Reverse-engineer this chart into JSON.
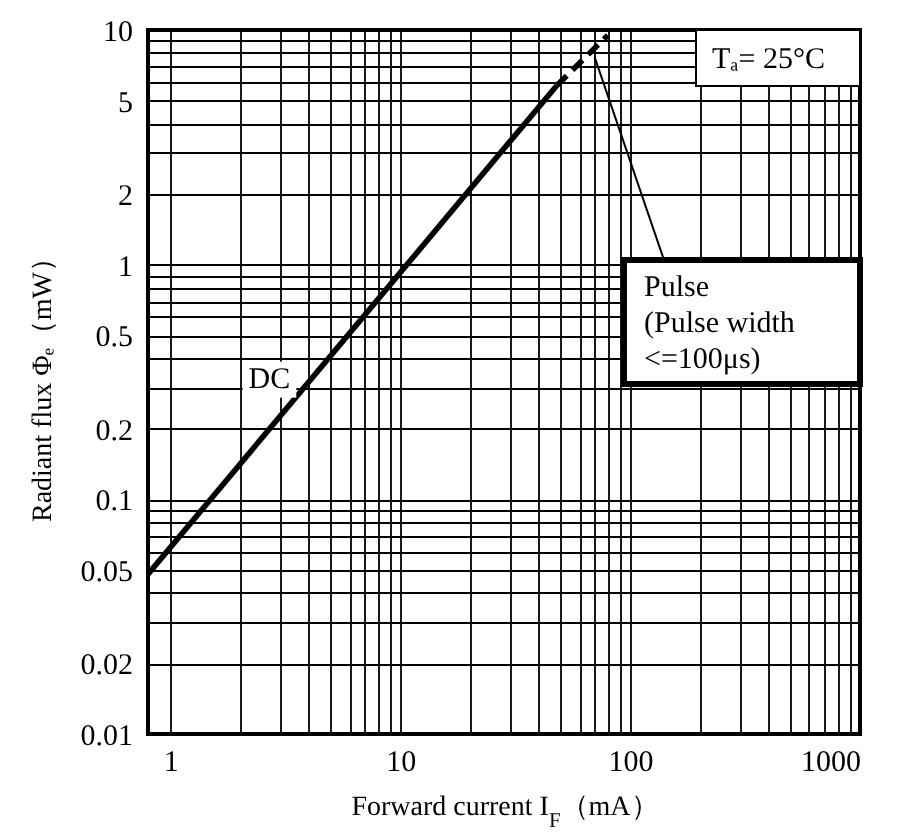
{
  "chart_data": {
    "type": "line",
    "xlabel": "Forward current I$_{F}$（mA）",
    "ylabel": "Radiant flux Φₑ（mW）",
    "series": [
      {
        "color": "#000000",
        "line_style": "solid",
        "x": [
          0.8,
          48
        ],
        "values": [
          0.048,
          5.8
        ]
      },
      {
        "color": "#000000",
        "line_style": "dashed",
        "x": [
          48,
          80
        ],
        "values": [
          5.8,
          9.5
        ]
      }
    ],
    "log": "xy",
    "xlim": [
      0.8,
      1000
    ],
    "ylim": [
      0.01,
      10
    ],
    "xticks": [
      1,
      {
        "value": 2,
        "label": null
      },
      {
        "value": 3,
        "label": null
      },
      {
        "value": 4,
        "label": null
      },
      {
        "value": 5,
        "label": null
      },
      {
        "value": 6,
        "label": null
      },
      {
        "value": 7,
        "label": null
      },
      {
        "value": 8,
        "label": null
      },
      {
        "value": 9,
        "label": null
      },
      10,
      {
        "value": 20,
        "label": null
      },
      {
        "value": 30,
        "label": null
      },
      {
        "value": 40,
        "label": null
      },
      {
        "value": 50,
        "label": null
      },
      {
        "value": 60,
        "label": null
      },
      {
        "value": 70,
        "label": null
      },
      {
        "value": 80,
        "label": null
      },
      {
        "value": 90,
        "label": null
      },
      100,
      {
        "value": 200,
        "label": null
      },
      {
        "value": 300,
        "label": null
      },
      {
        "value": 400,
        "label": null
      },
      {
        "value": 500,
        "label": null
      },
      {
        "value": 600,
        "label": null
      },
      {
        "value": 700,
        "label": null
      },
      {
        "value": 800,
        "label": null
      },
      {
        "value": 900,
        "label": null
      },
      1000
    ],
    "yticks": [
      0.01,
      0.02,
      {
        "value": 0.03,
        "label": null
      },
      {
        "value": 0.04,
        "label": null
      },
      0.05,
      {
        "value": 0.06,
        "label": null
      },
      {
        "value": 0.07,
        "label": null
      },
      {
        "value": 0.08,
        "label": null
      },
      {
        "value": 0.09,
        "label": null
      },
      0.1,
      0.2,
      {
        "value": 0.3,
        "label": null
      },
      {
        "value": 0.4,
        "label": null
      },
      0.5,
      {
        "value": 0.6,
        "label": null
      },
      {
        "value": 0.7,
        "label": null
      },
      {
        "value": 0.8,
        "label": null
      },
      {
        "value": 0.9,
        "label": null
      },
      1,
      2,
      {
        "value": 3,
        "label": null
      },
      {
        "value": 4,
        "label": null
      },
      5,
      {
        "value": 6,
        "label": null
      },
      {
        "value": 7,
        "label": null
      },
      {
        "value": 8,
        "label": null
      },
      {
        "value": 9,
        "label": null
      },
      10
    ],
    "grid": true,
    "annotations": [
      "Tₐ= 25°C",
      {
        "text": "DC",
        "x": 2.7,
        "y": 0.33
      },
      {
        "text": "Pulse\n(Pulse width\n<=100μs)",
        "x": 70,
        "y": 7.7
      }
    ]
  }
}
